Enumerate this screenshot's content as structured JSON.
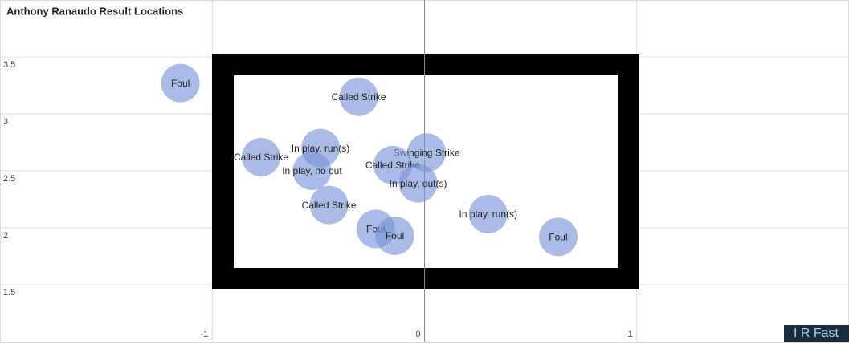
{
  "chart_data": {
    "type": "scatter",
    "title": "Anthony Ranaudo Result Locations",
    "xlim": [
      -2,
      2
    ],
    "ylim": [
      1,
      4
    ],
    "xticks": [
      -1,
      0,
      1
    ],
    "yticks": [
      1.5,
      2,
      2.5,
      3,
      3.5
    ],
    "grid": true,
    "color": "#7b96d9",
    "x": [
      -1.15,
      -0.31,
      -0.77,
      -0.49,
      -0.53,
      0.01,
      -0.15,
      -0.03,
      -0.45,
      0.3,
      -0.23,
      -0.14,
      0.63
    ],
    "values": [
      3.27,
      3.15,
      2.62,
      2.7,
      2.5,
      2.66,
      2.55,
      2.39,
      2.2,
      2.12,
      1.99,
      1.93,
      1.92
    ],
    "point_labels": [
      "Foul",
      "Called Strike",
      "Called Strike",
      "In play, run(s)",
      "In play, no out",
      "Swinging Strike",
      "Called Strike",
      "In play, out(s)",
      "Called Strike",
      "In play, run(s)",
      "Foul",
      "Foul",
      "Foul"
    ]
  },
  "watermark": "I R Fast"
}
